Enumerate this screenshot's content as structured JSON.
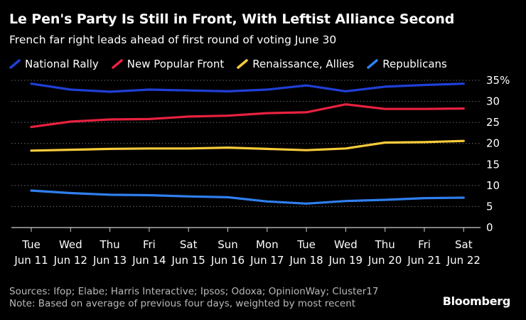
{
  "chart_data": {
    "type": "line",
    "title": "Le Pen's Party Is Still in Front, With Leftist Alliance Second",
    "subtitle": "French far right leads ahead of first round of voting June 30",
    "x_weekdays": [
      "Tue",
      "Wed",
      "Thu",
      "Fri",
      "Sat",
      "Sun",
      "Mon",
      "Tue",
      "Wed",
      "Thu",
      "Fri",
      "Sat"
    ],
    "x_dates": [
      "Jun 11",
      "Jun 12",
      "Jun 13",
      "Jun 14",
      "Jun 15",
      "Jun 16",
      "Jun 17",
      "Jun 18",
      "Jun 19",
      "Jun 20",
      "Jun 21",
      "Jun 22"
    ],
    "y_ticks": [
      35,
      30,
      25,
      20,
      15,
      10,
      5,
      0
    ],
    "y_tick_labels": [
      "35%",
      "30",
      "25",
      "20",
      "15",
      "10",
      "5",
      "0"
    ],
    "ylim": [
      0,
      35
    ],
    "grid": true,
    "series": [
      {
        "name": "National Rally",
        "color": "#1f3fd6",
        "values": [
          34.2,
          32.8,
          32.3,
          32.8,
          32.6,
          32.4,
          32.8,
          33.8,
          32.4,
          33.5,
          33.9,
          34.2
        ]
      },
      {
        "name": "New Popular Front",
        "color": "#e8213f",
        "values": [
          23.9,
          25.2,
          25.7,
          25.8,
          26.4,
          26.6,
          27.2,
          27.4,
          29.3,
          28.2,
          28.2,
          28.3
        ]
      },
      {
        "name": "Renaissance, Allies",
        "color": "#f8cb3a",
        "values": [
          18.3,
          18.5,
          18.7,
          18.8,
          18.8,
          19.0,
          18.7,
          18.4,
          18.8,
          20.2,
          20.3,
          20.6
        ]
      },
      {
        "name": "Republicans",
        "color": "#2f7ff0",
        "values": [
          8.8,
          8.2,
          7.8,
          7.7,
          7.4,
          7.2,
          6.2,
          5.7,
          6.3,
          6.6,
          7.0,
          7.1
        ]
      }
    ]
  },
  "footer": {
    "sources": "Sources: Ifop; Elabe; Harris Interactive; Ipsos; Odoxa; OpinionWay; Cluster17",
    "note": "Note: Based on average of previous four days, weighted by most recent"
  },
  "brand": "Bloomberg",
  "colors": {
    "background": "#000000",
    "grid": "#6a6a6a",
    "axis": "#cfcfcf",
    "footer_text": "#b9b9b9"
  }
}
